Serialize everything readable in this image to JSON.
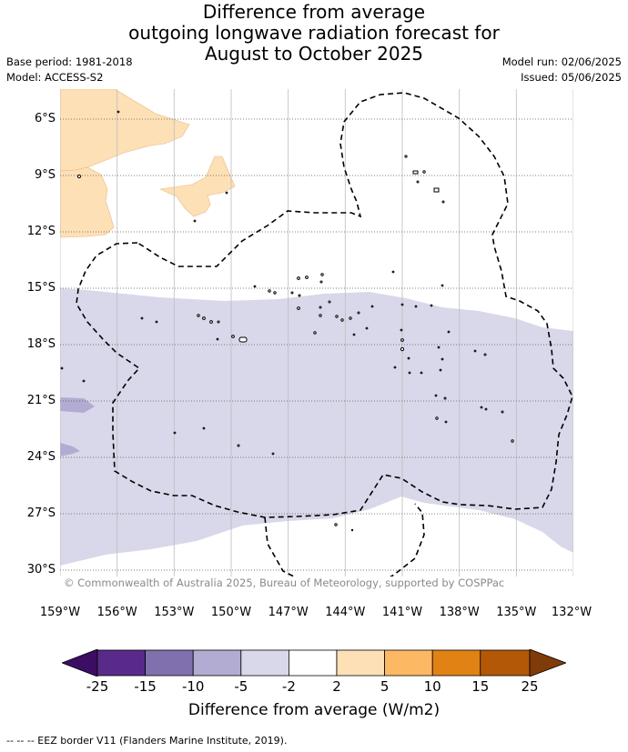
{
  "title": {
    "line1": "Difference from average",
    "line2": "outgoing longwave radiation forecast for",
    "line3": "August to October 2025"
  },
  "meta": {
    "base_period": "Base period: 1981-2018",
    "model": "Model: ACCESS-S2",
    "model_run": "Model run: 02/06/2025",
    "issued": "Issued: 05/06/2025"
  },
  "map": {
    "lat_labels": [
      "6°S",
      "9°S",
      "12°S",
      "15°S",
      "18°S",
      "21°S",
      "24°S",
      "27°S",
      "30°S"
    ],
    "lon_labels": [
      "159°W",
      "156°W",
      "153°W",
      "150°W",
      "147°W",
      "144°W",
      "141°W",
      "138°W",
      "135°W",
      "132°W"
    ],
    "land_color": "#ffffff",
    "coastline_color": "#000000",
    "eez_border_color": "#000000",
    "copyright": "© Commonwealth of Australia 2025, Bureau of Meteorology, supported by COSPPac"
  },
  "colorbar": {
    "labels": [
      "-25",
      "-15",
      "-10",
      "-5",
      "-2",
      "2",
      "5",
      "10",
      "15",
      "25"
    ],
    "colors": [
      "#3b0e63",
      "#5a2a8a",
      "#8070ad",
      "#b2abd2",
      "#d8d8ea",
      "#ffffff",
      "#fee0b6",
      "#fdb863",
      "#e08214",
      "#b35806",
      "#7f3b08"
    ],
    "title": "Difference from average (W/m2)"
  },
  "footnote": "--  --  -- EEZ border V11 (Flanders Marine Institute, 2019)."
}
